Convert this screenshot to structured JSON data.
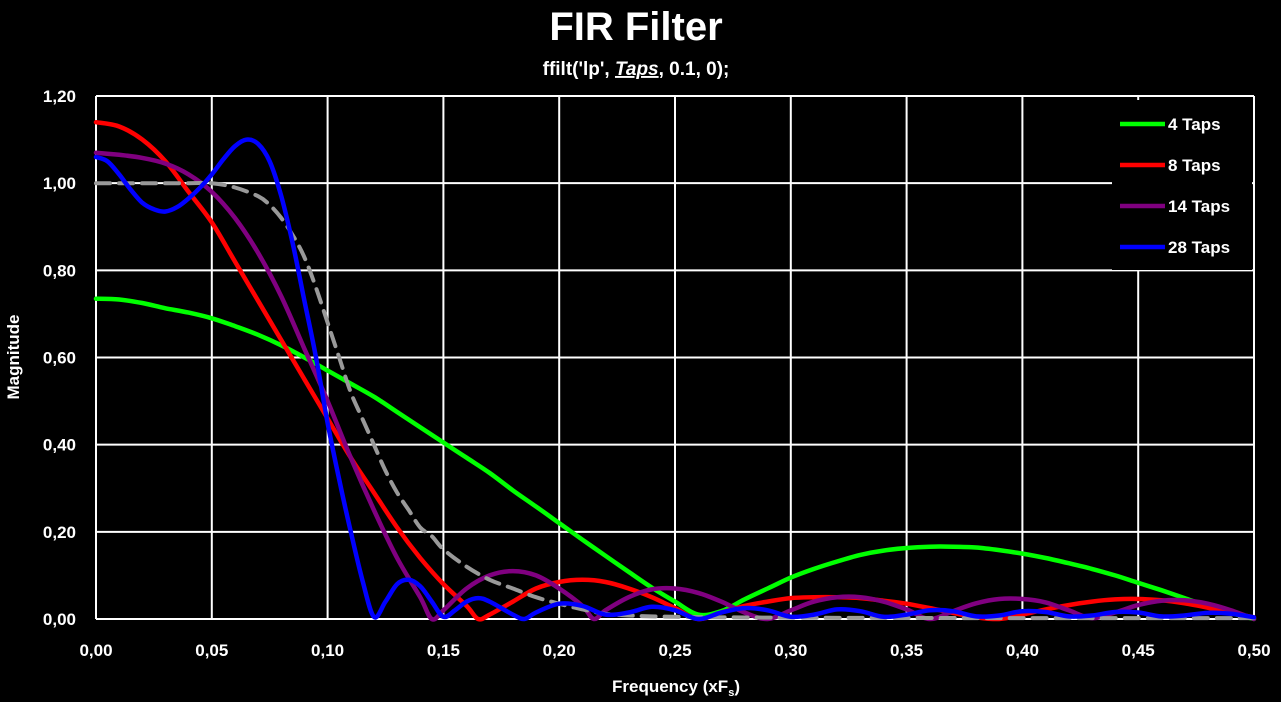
{
  "chart_data": {
    "type": "line",
    "title": "FIR Filter",
    "subtitle": {
      "prefix": "ffilt('lp', ",
      "emphasis": "Taps",
      "suffix": ", 0.1, 0);"
    },
    "xlabel": {
      "main": "Frequency (xF",
      "sub": "s",
      "close": ")"
    },
    "ylabel": "Magnitude",
    "xlim": [
      0,
      0.5
    ],
    "ylim": [
      0,
      1.2
    ],
    "x_ticks": [
      0,
      0.05,
      0.1,
      0.15,
      0.2,
      0.25,
      0.3,
      0.35,
      0.4,
      0.45,
      0.5
    ],
    "x_tick_labels": [
      "0,00",
      "0,05",
      "0,10",
      "0,15",
      "0,20",
      "0,25",
      "0,30",
      "0,35",
      "0,40",
      "0,45",
      "0,50"
    ],
    "y_ticks": [
      0,
      0.2,
      0.4,
      0.6,
      0.8,
      1.0,
      1.2
    ],
    "y_tick_labels": [
      "0,00",
      "0,20",
      "0,40",
      "0,60",
      "0,80",
      "1,00",
      "1,20"
    ],
    "grid": true,
    "legend_position": "top-right",
    "series": [
      {
        "name": "4 Taps",
        "color": "#00ff00",
        "dashed": false,
        "points": [
          [
            0,
            0.735
          ],
          [
            0.01,
            0.733
          ],
          [
            0.02,
            0.725
          ],
          [
            0.03,
            0.713
          ],
          [
            0.04,
            0.703
          ],
          [
            0.05,
            0.69
          ],
          [
            0.06,
            0.672
          ],
          [
            0.07,
            0.652
          ],
          [
            0.08,
            0.628
          ],
          [
            0.09,
            0.6
          ],
          [
            0.1,
            0.57
          ],
          [
            0.11,
            0.54
          ],
          [
            0.12,
            0.51
          ],
          [
            0.13,
            0.475
          ],
          [
            0.14,
            0.44
          ],
          [
            0.15,
            0.405
          ],
          [
            0.16,
            0.37
          ],
          [
            0.17,
            0.335
          ],
          [
            0.18,
            0.295
          ],
          [
            0.19,
            0.258
          ],
          [
            0.2,
            0.22
          ],
          [
            0.21,
            0.182
          ],
          [
            0.22,
            0.145
          ],
          [
            0.23,
            0.108
          ],
          [
            0.24,
            0.072
          ],
          [
            0.25,
            0.04
          ],
          [
            0.26,
            0.01
          ],
          [
            0.27,
            0.018
          ],
          [
            0.28,
            0.045
          ],
          [
            0.29,
            0.07
          ],
          [
            0.3,
            0.095
          ],
          [
            0.31,
            0.115
          ],
          [
            0.32,
            0.132
          ],
          [
            0.33,
            0.147
          ],
          [
            0.34,
            0.157
          ],
          [
            0.35,
            0.163
          ],
          [
            0.36,
            0.166
          ],
          [
            0.37,
            0.166
          ],
          [
            0.38,
            0.164
          ],
          [
            0.39,
            0.158
          ],
          [
            0.4,
            0.15
          ],
          [
            0.41,
            0.14
          ],
          [
            0.42,
            0.128
          ],
          [
            0.43,
            0.115
          ],
          [
            0.44,
            0.1
          ],
          [
            0.45,
            0.083
          ],
          [
            0.46,
            0.066
          ],
          [
            0.47,
            0.048
          ],
          [
            0.48,
            0.03
          ],
          [
            0.49,
            0.014
          ],
          [
            0.5,
            0.0
          ]
        ]
      },
      {
        "name": "8 Taps",
        "color": "#ff0000",
        "dashed": false,
        "points": [
          [
            0,
            1.14
          ],
          [
            0.01,
            1.13
          ],
          [
            0.02,
            1.1
          ],
          [
            0.03,
            1.05
          ],
          [
            0.04,
            0.98
          ],
          [
            0.05,
            0.91
          ],
          [
            0.06,
            0.82
          ],
          [
            0.07,
            0.73
          ],
          [
            0.08,
            0.64
          ],
          [
            0.09,
            0.55
          ],
          [
            0.1,
            0.46
          ],
          [
            0.11,
            0.37
          ],
          [
            0.12,
            0.29
          ],
          [
            0.13,
            0.21
          ],
          [
            0.14,
            0.14
          ],
          [
            0.15,
            0.08
          ],
          [
            0.16,
            0.03
          ],
          [
            0.165,
            0.0
          ],
          [
            0.17,
            0.01
          ],
          [
            0.18,
            0.04
          ],
          [
            0.19,
            0.07
          ],
          [
            0.2,
            0.085
          ],
          [
            0.21,
            0.09
          ],
          [
            0.22,
            0.085
          ],
          [
            0.23,
            0.07
          ],
          [
            0.24,
            0.05
          ],
          [
            0.25,
            0.025
          ],
          [
            0.26,
            0.0
          ],
          [
            0.27,
            0.015
          ],
          [
            0.28,
            0.03
          ],
          [
            0.29,
            0.04
          ],
          [
            0.3,
            0.048
          ],
          [
            0.31,
            0.05
          ],
          [
            0.32,
            0.05
          ],
          [
            0.33,
            0.048
          ],
          [
            0.34,
            0.042
          ],
          [
            0.35,
            0.035
          ],
          [
            0.36,
            0.025
          ],
          [
            0.37,
            0.014
          ],
          [
            0.38,
            0.004
          ],
          [
            0.39,
            0.0
          ],
          [
            0.4,
            0.01
          ],
          [
            0.41,
            0.022
          ],
          [
            0.42,
            0.032
          ],
          [
            0.43,
            0.04
          ],
          [
            0.44,
            0.045
          ],
          [
            0.45,
            0.046
          ],
          [
            0.46,
            0.043
          ],
          [
            0.47,
            0.036
          ],
          [
            0.48,
            0.026
          ],
          [
            0.49,
            0.014
          ],
          [
            0.5,
            0.004
          ]
        ]
      },
      {
        "name": "14 Taps",
        "color": "#800080",
        "dashed": false,
        "points": [
          [
            0,
            1.07
          ],
          [
            0.01,
            1.065
          ],
          [
            0.02,
            1.058
          ],
          [
            0.03,
            1.045
          ],
          [
            0.04,
            1.02
          ],
          [
            0.05,
            0.98
          ],
          [
            0.06,
            0.92
          ],
          [
            0.07,
            0.84
          ],
          [
            0.08,
            0.74
          ],
          [
            0.09,
            0.62
          ],
          [
            0.1,
            0.5
          ],
          [
            0.11,
            0.37
          ],
          [
            0.12,
            0.25
          ],
          [
            0.13,
            0.14
          ],
          [
            0.14,
            0.05
          ],
          [
            0.145,
            0.0
          ],
          [
            0.15,
            0.02
          ],
          [
            0.16,
            0.07
          ],
          [
            0.17,
            0.1
          ],
          [
            0.18,
            0.11
          ],
          [
            0.19,
            0.1
          ],
          [
            0.2,
            0.07
          ],
          [
            0.21,
            0.03
          ],
          [
            0.215,
            0.0
          ],
          [
            0.22,
            0.02
          ],
          [
            0.23,
            0.05
          ],
          [
            0.24,
            0.068
          ],
          [
            0.25,
            0.07
          ],
          [
            0.26,
            0.06
          ],
          [
            0.27,
            0.04
          ],
          [
            0.28,
            0.015
          ],
          [
            0.29,
            0.0
          ],
          [
            0.3,
            0.02
          ],
          [
            0.31,
            0.04
          ],
          [
            0.32,
            0.05
          ],
          [
            0.33,
            0.05
          ],
          [
            0.34,
            0.04
          ],
          [
            0.35,
            0.022
          ],
          [
            0.36,
            0.0
          ],
          [
            0.37,
            0.018
          ],
          [
            0.38,
            0.036
          ],
          [
            0.39,
            0.046
          ],
          [
            0.4,
            0.046
          ],
          [
            0.41,
            0.038
          ],
          [
            0.42,
            0.02
          ],
          [
            0.43,
            0.002
          ],
          [
            0.44,
            0.015
          ],
          [
            0.45,
            0.032
          ],
          [
            0.46,
            0.042
          ],
          [
            0.47,
            0.043
          ],
          [
            0.48,
            0.035
          ],
          [
            0.49,
            0.02
          ],
          [
            0.5,
            0.0
          ]
        ]
      },
      {
        "name": "28 Taps",
        "color": "#0000ff",
        "dashed": false,
        "points": [
          [
            0,
            1.06
          ],
          [
            0.005,
            1.05
          ],
          [
            0.01,
            1.02
          ],
          [
            0.015,
            0.985
          ],
          [
            0.02,
            0.955
          ],
          [
            0.025,
            0.94
          ],
          [
            0.03,
            0.935
          ],
          [
            0.035,
            0.945
          ],
          [
            0.04,
            0.965
          ],
          [
            0.045,
            0.99
          ],
          [
            0.05,
            1.02
          ],
          [
            0.055,
            1.055
          ],
          [
            0.06,
            1.085
          ],
          [
            0.065,
            1.1
          ],
          [
            0.07,
            1.09
          ],
          [
            0.075,
            1.05
          ],
          [
            0.08,
            0.97
          ],
          [
            0.085,
            0.86
          ],
          [
            0.09,
            0.73
          ],
          [
            0.095,
            0.6
          ],
          [
            0.1,
            0.45
          ],
          [
            0.105,
            0.32
          ],
          [
            0.11,
            0.2
          ],
          [
            0.115,
            0.09
          ],
          [
            0.12,
            0.005
          ],
          [
            0.125,
            0.04
          ],
          [
            0.13,
            0.08
          ],
          [
            0.135,
            0.09
          ],
          [
            0.14,
            0.075
          ],
          [
            0.145,
            0.04
          ],
          [
            0.15,
            0.005
          ],
          [
            0.155,
            0.02
          ],
          [
            0.16,
            0.04
          ],
          [
            0.165,
            0.048
          ],
          [
            0.17,
            0.04
          ],
          [
            0.18,
            0.01
          ],
          [
            0.185,
            0.0
          ],
          [
            0.19,
            0.015
          ],
          [
            0.2,
            0.035
          ],
          [
            0.21,
            0.03
          ],
          [
            0.22,
            0.01
          ],
          [
            0.23,
            0.015
          ],
          [
            0.24,
            0.028
          ],
          [
            0.25,
            0.02
          ],
          [
            0.26,
            0.0
          ],
          [
            0.27,
            0.015
          ],
          [
            0.28,
            0.025
          ],
          [
            0.29,
            0.02
          ],
          [
            0.3,
            0.005
          ],
          [
            0.31,
            0.01
          ],
          [
            0.32,
            0.022
          ],
          [
            0.33,
            0.018
          ],
          [
            0.34,
            0.005
          ],
          [
            0.35,
            0.01
          ],
          [
            0.36,
            0.02
          ],
          [
            0.37,
            0.018
          ],
          [
            0.38,
            0.006
          ],
          [
            0.39,
            0.008
          ],
          [
            0.4,
            0.018
          ],
          [
            0.41,
            0.016
          ],
          [
            0.42,
            0.006
          ],
          [
            0.43,
            0.008
          ],
          [
            0.44,
            0.016
          ],
          [
            0.45,
            0.015
          ],
          [
            0.46,
            0.006
          ],
          [
            0.47,
            0.008
          ],
          [
            0.48,
            0.014
          ],
          [
            0.49,
            0.012
          ],
          [
            0.5,
            0.004
          ]
        ]
      },
      {
        "name": "",
        "color": "#999999",
        "dashed": true,
        "points": [
          [
            0,
            1.0
          ],
          [
            0.02,
            1.0
          ],
          [
            0.04,
            1.0
          ],
          [
            0.05,
            1.0
          ],
          [
            0.06,
            0.99
          ],
          [
            0.07,
            0.97
          ],
          [
            0.075,
            0.95
          ],
          [
            0.08,
            0.92
          ],
          [
            0.085,
            0.88
          ],
          [
            0.09,
            0.83
          ],
          [
            0.095,
            0.76
          ],
          [
            0.1,
            0.68
          ],
          [
            0.105,
            0.6
          ],
          [
            0.11,
            0.52
          ],
          [
            0.115,
            0.46
          ],
          [
            0.12,
            0.4
          ],
          [
            0.125,
            0.34
          ],
          [
            0.13,
            0.29
          ],
          [
            0.135,
            0.25
          ],
          [
            0.14,
            0.21
          ],
          [
            0.145,
            0.19
          ],
          [
            0.15,
            0.16
          ],
          [
            0.16,
            0.12
          ],
          [
            0.17,
            0.09
          ],
          [
            0.18,
            0.07
          ],
          [
            0.19,
            0.05
          ],
          [
            0.2,
            0.035
          ],
          [
            0.21,
            0.022
          ],
          [
            0.22,
            0.012
          ],
          [
            0.23,
            0.008
          ],
          [
            0.25,
            0.005
          ],
          [
            0.3,
            0.003
          ],
          [
            0.4,
            0.002
          ],
          [
            0.5,
            0.002
          ]
        ]
      }
    ]
  }
}
